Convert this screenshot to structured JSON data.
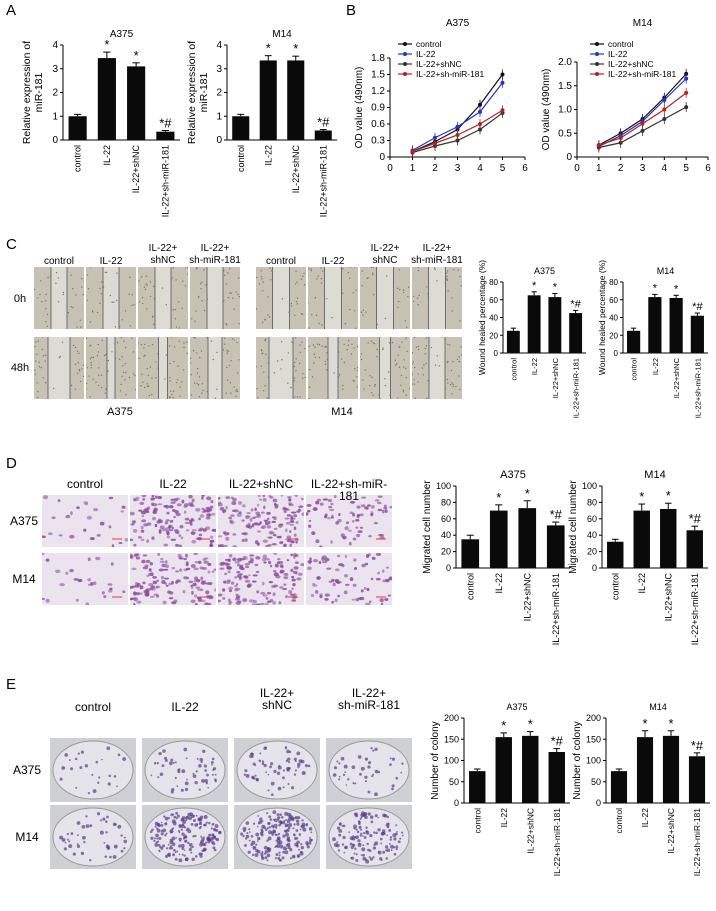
{
  "panels": {
    "A": "A",
    "B": "B",
    "C": "C",
    "D": "D",
    "E": "E"
  },
  "colors": {
    "black": "#111111",
    "blue": "#2233cc",
    "red": "#b22222",
    "dark": "#333333",
    "bar": "#0a0a0a",
    "scratch_bg": "#c8c2b4",
    "stain": "#8a4a9e",
    "plate_bg": "#e4e4ea",
    "colony": "#5b3c8c"
  },
  "annotations": {
    "star": "*",
    "star_hash": "*#",
    "hash_only": "*#"
  },
  "panelA": [
    {
      "title": "A375",
      "ylabel": "Relative expression of miR-181",
      "categories": [
        "control",
        "IL-22",
        "IL-22+shNC",
        "IL-22+sh-miR-181"
      ],
      "values": [
        1.0,
        3.45,
        3.1,
        0.35
      ],
      "errors": [
        0.08,
        0.25,
        0.15,
        0.05
      ],
      "sig": [
        "",
        "*",
        "*",
        "*#"
      ],
      "ylim": [
        0,
        4
      ],
      "yticks": [
        "0",
        "1",
        "2",
        "3",
        "4"
      ]
    },
    {
      "title": "M14",
      "ylabel": "Relative expression of miR-181",
      "categories": [
        "control",
        "IL-22",
        "IL-22+shNC",
        "IL-22+sh-miR-181"
      ],
      "values": [
        1.0,
        3.35,
        3.35,
        0.4
      ],
      "errors": [
        0.08,
        0.2,
        0.18,
        0.04
      ],
      "sig": [
        "",
        "*",
        "*",
        "*#"
      ],
      "ylim": [
        0,
        4
      ],
      "yticks": [
        "0",
        "1",
        "2",
        "3",
        "4"
      ]
    }
  ],
  "panelB": [
    {
      "title": "A375",
      "ylabel": "OD value (490nm)",
      "x": [
        1,
        2,
        3,
        4,
        5
      ],
      "xlim": [
        0,
        6
      ],
      "ylim": [
        0,
        1.8
      ],
      "yticks": [
        "0",
        "0.3",
        "0.6",
        "0.9",
        "1.2",
        "1.5",
        "1.8"
      ],
      "xticks": [
        "0",
        "1",
        "2",
        "3",
        "4",
        "5",
        "6"
      ],
      "series": [
        {
          "name": "control",
          "color": "#111111",
          "values": [
            0.1,
            0.28,
            0.5,
            0.95,
            1.5
          ]
        },
        {
          "name": "IL-22",
          "color": "#2233cc",
          "values": [
            0.12,
            0.35,
            0.55,
            0.82,
            1.35
          ]
        },
        {
          "name": "IL-22+shNC",
          "color": "#333333",
          "values": [
            0.08,
            0.2,
            0.3,
            0.5,
            0.8
          ]
        },
        {
          "name": "IL-22+sh-miR-181",
          "color": "#b22222",
          "values": [
            0.1,
            0.25,
            0.4,
            0.6,
            0.85
          ]
        }
      ]
    },
    {
      "title": "M14",
      "ylabel": "OD value (490nm)",
      "x": [
        1,
        2,
        3,
        4,
        5
      ],
      "xlim": [
        0,
        6
      ],
      "ylim": [
        0,
        2.0
      ],
      "yticks": [
        "0",
        "0.5",
        "1.0",
        "1.5",
        "2.0"
      ],
      "xticks": [
        "0",
        "1",
        "2",
        "3",
        "4",
        "5",
        "6"
      ],
      "series": [
        {
          "name": "control",
          "color": "#111111",
          "values": [
            0.25,
            0.5,
            0.8,
            1.25,
            1.75
          ]
        },
        {
          "name": "IL-22",
          "color": "#2233cc",
          "values": [
            0.22,
            0.45,
            0.75,
            1.2,
            1.65
          ]
        },
        {
          "name": "IL-22+shNC",
          "color": "#333333",
          "values": [
            0.2,
            0.3,
            0.55,
            0.8,
            1.05
          ]
        },
        {
          "name": "IL-22+sh-miR-181",
          "color": "#b22222",
          "values": [
            0.25,
            0.4,
            0.7,
            1.0,
            1.35
          ]
        }
      ]
    }
  ],
  "panelC": {
    "col_labels_a375": [
      "control",
      "IL-22",
      "IL-22+\nshNC",
      "IL-22+\nsh-miR-181"
    ],
    "col_labels_m14": [
      "control",
      "IL-22",
      "IL-22+\nshNC",
      "IL-22+\nsh-miR-181"
    ],
    "row_labels": [
      "0h",
      "48h"
    ],
    "group_a375": "A375",
    "group_m14": "M14",
    "charts": [
      {
        "title": "A375",
        "ylabel": "Wound healed percentage (%)",
        "categories": [
          "control",
          "IL-22",
          "IL-22+shNC",
          "IL-22+sh-miR-181"
        ],
        "values": [
          25,
          65,
          63,
          45
        ],
        "errors": [
          3,
          4,
          4,
          3
        ],
        "sig": [
          "",
          "*",
          "*",
          "*#"
        ],
        "ylim": [
          0,
          80
        ],
        "yticks": [
          "0",
          "20",
          "40",
          "60",
          "80"
        ]
      },
      {
        "title": "M14",
        "ylabel": "Wound healed percentage (%)",
        "categories": [
          "control",
          "IL-22",
          "IL-22+shNC",
          "IL-22+sh-miR-181"
        ],
        "values": [
          25,
          63,
          62,
          42
        ],
        "errors": [
          3,
          3,
          3,
          3
        ],
        "sig": [
          "",
          "*",
          "*",
          "*#"
        ],
        "ylim": [
          0,
          80
        ],
        "yticks": [
          "0",
          "20",
          "40",
          "60",
          "80"
        ]
      }
    ]
  },
  "panelD": {
    "col_labels": [
      "control",
      "IL-22",
      "IL-22+shNC",
      "IL-22+sh-miR-181"
    ],
    "row_labels": [
      "A375",
      "M14"
    ],
    "charts": [
      {
        "title": "A375",
        "ylabel": "Migrated cell number",
        "categories": [
          "control",
          "IL-22",
          "IL-22+shNC",
          "IL-22+sh-miR-181"
        ],
        "values": [
          35,
          70,
          73,
          52
        ],
        "errors": [
          5,
          7,
          9,
          4
        ],
        "sig": [
          "",
          "*",
          "*",
          "*#"
        ],
        "ylim": [
          0,
          100
        ],
        "yticks": [
          "0",
          "20",
          "40",
          "60",
          "80",
          "100"
        ]
      },
      {
        "title": "M14",
        "ylabel": "Migrated cell number",
        "categories": [
          "control",
          "IL-22",
          "IL-22+shNC",
          "IL-22+sh-miR-181"
        ],
        "values": [
          32,
          70,
          72,
          46
        ],
        "errors": [
          3,
          8,
          7,
          5
        ],
        "sig": [
          "",
          "*",
          "*",
          "*#"
        ],
        "ylim": [
          0,
          100
        ],
        "yticks": [
          "0",
          "20",
          "40",
          "60",
          "80",
          "100"
        ]
      }
    ]
  },
  "panelE": {
    "col_labels": [
      "control",
      "IL-22",
      "IL-22+\nshNC",
      "IL-22+\nsh-miR-181"
    ],
    "row_labels": [
      "A375",
      "M14"
    ],
    "charts": [
      {
        "title": "A375",
        "ylabel": "Number of colony",
        "categories": [
          "control",
          "IL-22",
          "IL-22+shNC",
          "IL-22+sh-miR-181"
        ],
        "values": [
          75,
          155,
          158,
          120
        ],
        "errors": [
          5,
          10,
          10,
          8
        ],
        "sig": [
          "",
          "*",
          "*",
          "*#"
        ],
        "ylim": [
          0,
          200
        ],
        "yticks": [
          "0",
          "50",
          "100",
          "150",
          "200"
        ]
      },
      {
        "title": "M14",
        "ylabel": "Number of colony",
        "categories": [
          "control",
          "IL-22",
          "IL-22+shNC",
          "IL-22+sh-miR-181"
        ],
        "values": [
          75,
          155,
          158,
          110
        ],
        "errors": [
          5,
          15,
          12,
          8
        ],
        "sig": [
          "",
          "*",
          "*",
          "*#"
        ],
        "ylim": [
          0,
          200
        ],
        "yticks": [
          "0",
          "50",
          "100",
          "150",
          "200"
        ]
      }
    ]
  }
}
